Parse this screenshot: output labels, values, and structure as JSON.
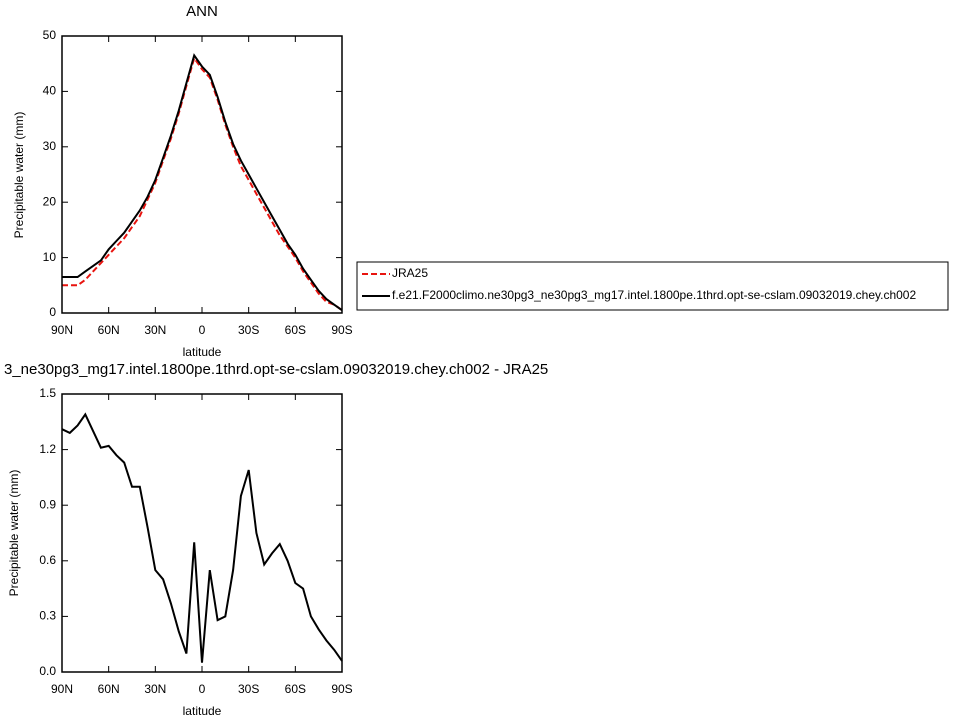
{
  "chart_data": [
    {
      "type": "line",
      "title": "ANN",
      "ylabel": "Precipitable water (mm)",
      "xlabel": "latitude",
      "x": [
        90,
        85,
        80,
        75,
        70,
        65,
        60,
        55,
        50,
        45,
        40,
        35,
        30,
        25,
        20,
        15,
        10,
        5,
        0,
        -5,
        -10,
        -15,
        -20,
        -25,
        -30,
        -35,
        -40,
        -45,
        -50,
        -55,
        -60,
        -65,
        -70,
        -75,
        -80,
        -85,
        -90
      ],
      "xlim": [
        90,
        -90
      ],
      "xticks": [
        {
          "value": 90,
          "label": "90N"
        },
        {
          "value": 60,
          "label": "60N"
        },
        {
          "value": 30,
          "label": "30N"
        },
        0,
        {
          "value": -30,
          "label": "30S"
        },
        {
          "value": -60,
          "label": "60S"
        },
        {
          "value": -90,
          "label": "90S"
        }
      ],
      "ylim": [
        0,
        50
      ],
      "yticks": [
        0,
        10,
        20,
        30,
        40,
        50
      ],
      "series": [
        {
          "name": "JRA25",
          "color": "#e8140f",
          "dash": true,
          "values": [
            5,
            5,
            5,
            6,
            7.5,
            9,
            10.5,
            12,
            13.5,
            15.5,
            17.5,
            20.5,
            23.5,
            27.5,
            31.5,
            36,
            41,
            46,
            44,
            42.5,
            38.5,
            34,
            30,
            26.5,
            24,
            21.5,
            19,
            16.5,
            14,
            12,
            10,
            7.5,
            5.5,
            3.5,
            2,
            1.5,
            0.5
          ]
        },
        {
          "name": "f.e21.F2000climo.ne30pg3_ne30pg3_mg17.intel.1800pe.1thrd.opt-se-cslam.09032019.chey.ch002",
          "color": "#000000",
          "dash": false,
          "values": [
            6.5,
            6.5,
            6.5,
            7.5,
            8.5,
            9.5,
            11.5,
            13,
            14.5,
            16.5,
            18.5,
            21,
            24,
            28,
            32,
            36.5,
            41.5,
            46.5,
            44.5,
            43,
            39,
            34.5,
            30.5,
            27.5,
            25,
            22.5,
            20,
            17.5,
            15,
            12.5,
            10.5,
            8,
            6,
            4,
            2.5,
            1.5,
            0.5
          ]
        }
      ]
    },
    {
      "type": "line",
      "title": "3_ne30pg3_mg17.intel.1800pe.1thrd.opt-se-cslam.09032019.chey.ch002 - JRA25",
      "ylabel": "Precipitable water (mm)",
      "xlabel": "latitude",
      "x": [
        90,
        85,
        80,
        75,
        70,
        65,
        60,
        55,
        50,
        45,
        40,
        35,
        30,
        25,
        20,
        15,
        10,
        5,
        0,
        -5,
        -10,
        -15,
        -20,
        -25,
        -30,
        -35,
        -40,
        -45,
        -50,
        -55,
        -60,
        -65,
        -70,
        -75,
        -80,
        -85,
        -90
      ],
      "xlim": [
        90,
        -90
      ],
      "xticks": [
        {
          "value": 90,
          "label": "90N"
        },
        {
          "value": 60,
          "label": "60N"
        },
        {
          "value": 30,
          "label": "30N"
        },
        0,
        {
          "value": -30,
          "label": "30S"
        },
        {
          "value": -60,
          "label": "60S"
        },
        {
          "value": -90,
          "label": "90S"
        }
      ],
      "ylim": [
        0,
        1.5
      ],
      "yticks": [
        {
          "value": 0,
          "label": "0.0"
        },
        0.3,
        0.6,
        0.9,
        1.2,
        1.5
      ],
      "series": [
        {
          "color": "#000000",
          "dash": false,
          "values": [
            1.31,
            1.29,
            1.33,
            1.39,
            1.3,
            1.21,
            1.22,
            1.17,
            1.13,
            1.0,
            1.0,
            0.78,
            0.55,
            0.5,
            0.37,
            0.22,
            0.1,
            0.7,
            0.05,
            0.55,
            0.28,
            0.3,
            0.55,
            0.95,
            1.09,
            0.75,
            0.58,
            0.64,
            0.69,
            0.6,
            0.48,
            0.45,
            0.3,
            0.23,
            0.17,
            0.12,
            0.06
          ]
        }
      ]
    }
  ]
}
